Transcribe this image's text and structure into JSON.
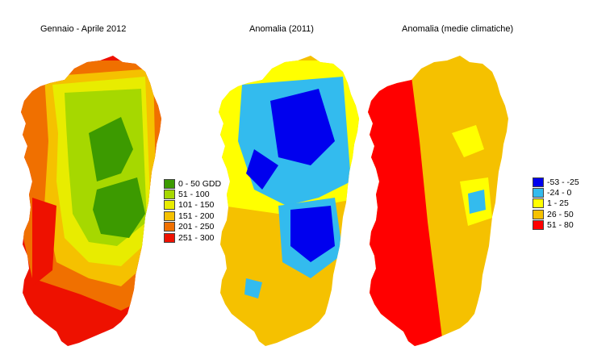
{
  "maps": [
    {
      "title": "Gennaio - Aprile 2012",
      "legend": [
        {
          "label": "0 - 50 GDD",
          "color": "#3c9a00"
        },
        {
          "label": "51 - 100",
          "color": "#a6d800"
        },
        {
          "label": "101 - 150",
          "color": "#e8ec00"
        },
        {
          "label": "151 - 200",
          "color": "#f5c100"
        },
        {
          "label": "201 - 250",
          "color": "#f07000"
        },
        {
          "label": "251 - 300",
          "color": "#ee1100"
        }
      ]
    },
    {
      "title": "Anomalia (2011)",
      "legend": []
    },
    {
      "title": "Anomalia (medie climatiche)",
      "legend": [
        {
          "label": "-53 - -25",
          "color": "#0000ee"
        },
        {
          "label": "-24 - 0",
          "color": "#33bbee"
        },
        {
          "label": "1 - 25",
          "color": "#ffff00"
        },
        {
          "label": "26 - 50",
          "color": "#f5c100"
        },
        {
          "label": "51 - 80",
          "color": "#ff0000"
        }
      ]
    }
  ]
}
